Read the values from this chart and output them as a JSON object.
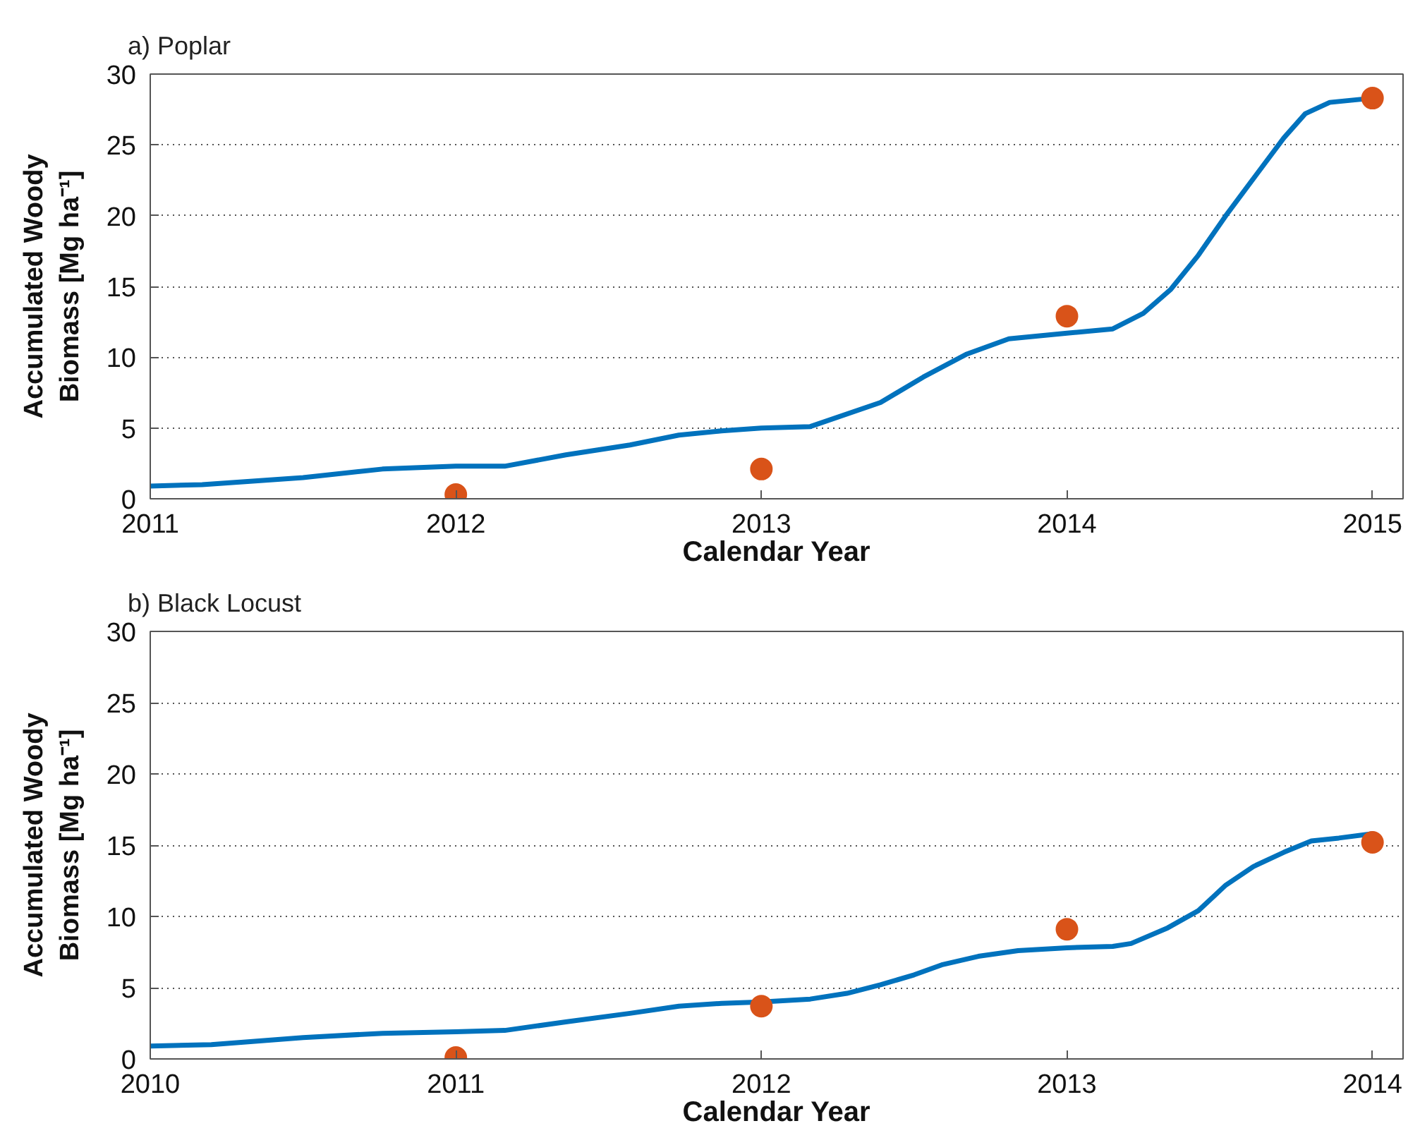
{
  "chart_data": [
    {
      "type": "line",
      "title": "a) Poplar",
      "xlabel": "Calendar Year",
      "ylabel": "Accumulated Woody\nBiomass [Mg ha⁻¹]",
      "xlim": [
        2011,
        2015.1
      ],
      "xticks": [
        2011,
        2012,
        2013,
        2014,
        2015
      ],
      "ylim": [
        0,
        30
      ],
      "yticks": [
        0,
        5,
        10,
        15,
        20,
        25,
        30
      ],
      "grid": "y",
      "series": [
        {
          "color": "#0072bd",
          "line_style": "solid",
          "x": [
            2011,
            2011.17,
            2011.5,
            2011.76,
            2012,
            2012.16,
            2012.36,
            2012.57,
            2012.73,
            2012.87,
            2013,
            2013.16,
            2013.39,
            2013.53,
            2013.67,
            2013.81,
            2014,
            2014.15,
            2014.25,
            2014.34,
            2014.43,
            2014.52,
            2014.62,
            2014.71,
            2014.78,
            2014.86,
            2015
          ],
          "values": [
            0.9,
            1.0,
            1.5,
            2.1,
            2.3,
            2.3,
            3.1,
            3.8,
            4.5,
            4.8,
            5.0,
            5.1,
            6.8,
            8.6,
            10.2,
            11.3,
            11.7,
            12.0,
            13.1,
            14.8,
            17.2,
            20.0,
            22.9,
            25.5,
            27.2,
            28.0,
            28.3
          ]
        },
        {
          "type": "scatter",
          "color": "#d95319",
          "marker": "circle",
          "x": [
            2012,
            2013,
            2014,
            2015
          ],
          "values": [
            0.3,
            2.1,
            12.9,
            28.3
          ]
        }
      ]
    },
    {
      "type": "line",
      "title": "b) Black Locust",
      "xlabel": "Calendar Year",
      "ylabel": "Accumulated Woody\nBiomass [Mg ha⁻¹]",
      "xlim": [
        2010,
        2014.1
      ],
      "xticks": [
        2010,
        2011,
        2012,
        2013,
        2014
      ],
      "ylim": [
        0,
        30
      ],
      "yticks": [
        0,
        5,
        10,
        15,
        20,
        25,
        30
      ],
      "grid": "y",
      "series": [
        {
          "color": "#0072bd",
          "line_style": "solid",
          "x": [
            2010,
            2010.2,
            2010.5,
            2010.76,
            2011,
            2011.16,
            2011.36,
            2011.57,
            2011.73,
            2011.87,
            2012,
            2012.16,
            2012.28,
            2012.39,
            2012.5,
            2012.59,
            2012.71,
            2012.84,
            2013,
            2013.15,
            2013.21,
            2013.33,
            2013.43,
            2013.52,
            2013.61,
            2013.71,
            2013.8,
            2013.89,
            2014
          ],
          "values": [
            0.9,
            1.0,
            1.5,
            1.8,
            1.9,
            2.0,
            2.6,
            3.2,
            3.7,
            3.9,
            4.0,
            4.2,
            4.6,
            5.2,
            5.9,
            6.6,
            7.2,
            7.6,
            7.8,
            7.9,
            8.1,
            9.2,
            10.4,
            12.2,
            13.5,
            14.5,
            15.3,
            15.5,
            15.8
          ]
        },
        {
          "type": "scatter",
          "color": "#d95319",
          "marker": "circle",
          "x": [
            2011,
            2012,
            2013,
            2014
          ],
          "values": [
            0.1,
            3.7,
            9.1,
            15.2
          ]
        }
      ]
    }
  ]
}
